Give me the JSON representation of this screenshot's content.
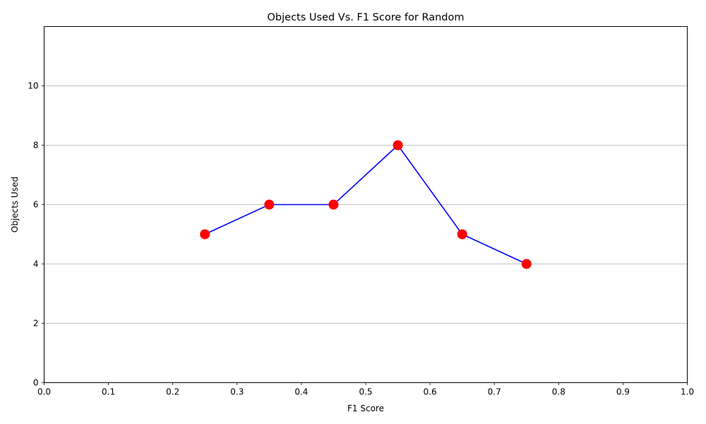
{
  "chart_data": {
    "type": "line",
    "title": "Objects Used Vs. F1 Score for Random",
    "xlabel": "F1 Score",
    "ylabel": "Objects Used",
    "xlim": [
      0,
      1.0
    ],
    "ylim": [
      0,
      12
    ],
    "xticks": [
      0.0,
      0.1,
      0.2,
      0.3,
      0.4,
      0.5,
      0.6,
      0.7,
      0.8,
      0.9,
      1.0
    ],
    "xtick_labels": [
      "0.0",
      "0.1",
      "0.2",
      "0.3",
      "0.4",
      "0.5",
      "0.6",
      "0.7",
      "0.8",
      "0.9",
      "1.0"
    ],
    "yticks": [
      0,
      2,
      4,
      6,
      8,
      10
    ],
    "ytick_labels": [
      "0",
      "2",
      "4",
      "6",
      "8",
      "10"
    ],
    "grid": "y-axis only",
    "series": [
      {
        "x": [
          0.25,
          0.35,
          0.45,
          0.55,
          0.65,
          0.75
        ],
        "y": [
          5,
          6,
          6,
          8,
          5,
          4
        ],
        "line_color": "#0000ff",
        "marker_color": "#ff0000"
      }
    ]
  }
}
